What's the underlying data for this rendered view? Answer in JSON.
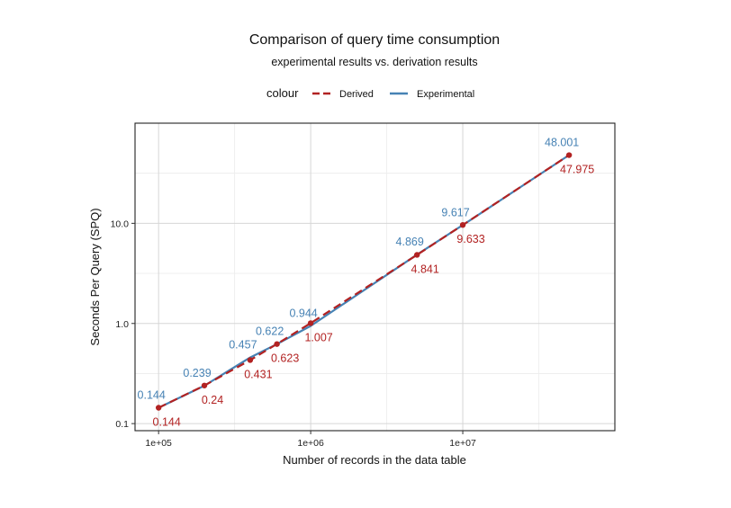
{
  "chart_data": {
    "type": "line",
    "title": "Comparison of query time consumption",
    "subtitle": "experimental results vs. derivation results",
    "xlabel": "Number of records in the data table",
    "ylabel": "Seconds Per Query (SPQ)",
    "x_scale": "log10",
    "y_scale": "log10",
    "xlim": [
      70000,
      100000000
    ],
    "ylim": [
      0.085,
      100
    ],
    "x_ticks": [
      100000,
      1000000,
      10000000
    ],
    "x_tick_labels": [
      "1e+05",
      "1e+06",
      "1e+07"
    ],
    "y_ticks": [
      0.1,
      1,
      10
    ],
    "y_tick_labels": [
      "0.1",
      "1.0",
      "10.0"
    ],
    "legend": {
      "title": "colour",
      "position": "top"
    },
    "x": [
      100000,
      200000,
      400000,
      600000,
      1000000,
      5000000,
      10000000,
      50000000
    ],
    "series": [
      {
        "name": "Derived",
        "color": "#b22222",
        "style": "dashed",
        "values": [
          0.144,
          0.24,
          0.431,
          0.623,
          1.007,
          4.841,
          9.633,
          47.975
        ],
        "labels": [
          "0.144",
          "0.24",
          "0.431",
          "0.623",
          "1.007",
          "4.841",
          "9.633",
          "47.975"
        ]
      },
      {
        "name": "Experimental",
        "color": "#4682b4",
        "style": "solid",
        "values": [
          0.144,
          0.239,
          0.457,
          0.622,
          0.944,
          4.869,
          9.617,
          48.001
        ],
        "labels": [
          "0.144",
          "0.239",
          "0.457",
          "0.622",
          "0.944",
          "4.869",
          "9.617",
          "48.001"
        ]
      }
    ]
  }
}
